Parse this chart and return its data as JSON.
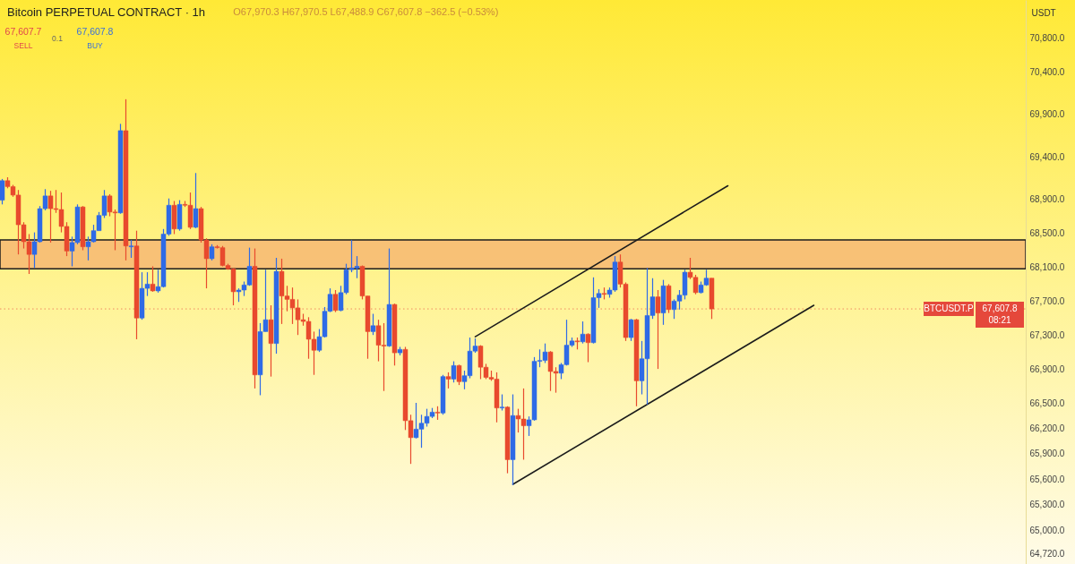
{
  "chart_data": {
    "type": "candlestick",
    "title": "Bitcoin PERPETUAL CONTRACT · 1h",
    "ylabel": "USDT",
    "categories": [
      null,
      null,
      null,
      null,
      null,
      null,
      null,
      null,
      null,
      null,
      null,
      null,
      null,
      null,
      null,
      null,
      null,
      null,
      null,
      null,
      null,
      null,
      null,
      null,
      null,
      null,
      null,
      null,
      null,
      null,
      null,
      null,
      null,
      null,
      null,
      null,
      null,
      null,
      null,
      null,
      null,
      null,
      null,
      null,
      null,
      null,
      null,
      null,
      null,
      null,
      null,
      null,
      null,
      null,
      null,
      null,
      null,
      null,
      null,
      null,
      null,
      null,
      null,
      null,
      null,
      null,
      null,
      null,
      null,
      null,
      null,
      null,
      null,
      null,
      null,
      null,
      null,
      null,
      null,
      null,
      null,
      null,
      null,
      null,
      null,
      null,
      null,
      null,
      null,
      null,
      null,
      null,
      null,
      null,
      null,
      null,
      null,
      null,
      null,
      null,
      null,
      null,
      null,
      null,
      null,
      null,
      null,
      null,
      null,
      null,
      null,
      null,
      null,
      null,
      null,
      null,
      null,
      null,
      null,
      null,
      null,
      null,
      null,
      null,
      null,
      null,
      null,
      null,
      null,
      null,
      null,
      null,
      null,
      null,
      null,
      null,
      null,
      null,
      null,
      null,
      null,
      null,
      null,
      null,
      null,
      null,
      null,
      null,
      null,
      null,
      null,
      null,
      null,
      null,
      null,
      null,
      null,
      null,
      null,
      null,
      null,
      null,
      null,
      null,
      null,
      null,
      null,
      null,
      null,
      null,
      null,
      null,
      null,
      null,
      null,
      null,
      null,
      null,
      null,
      null,
      null,
      null,
      null,
      null,
      null,
      null,
      null,
      null,
      null,
      null,
      null
    ],
    "ohlc": [
      [
        68890,
        69140,
        68840,
        69120
      ],
      [
        69120,
        69160,
        69030,
        69050
      ],
      [
        69050,
        69070,
        68930,
        68950
      ],
      [
        68950,
        69010,
        68250,
        68600
      ],
      [
        68600,
        68630,
        68320,
        68400
      ],
      [
        68400,
        68490,
        68020,
        68250
      ],
      [
        68250,
        68510,
        68090,
        68400
      ],
      [
        68400,
        68820,
        68390,
        68790
      ],
      [
        68790,
        69020,
        68770,
        68940
      ],
      [
        68940,
        69000,
        68390,
        68790
      ],
      [
        68790,
        69010,
        68740,
        68780
      ],
      [
        68780,
        68980,
        68510,
        68580
      ],
      [
        68580,
        68630,
        68230,
        68290
      ],
      [
        68290,
        68460,
        68110,
        68390
      ],
      [
        68390,
        68840,
        68370,
        68810
      ],
      [
        68810,
        68820,
        68300,
        68340
      ],
      [
        68340,
        68460,
        68180,
        68400
      ],
      [
        68400,
        68600,
        68390,
        68530
      ],
      [
        68530,
        68750,
        68530,
        68710
      ],
      [
        68710,
        69010,
        68680,
        68940
      ],
      [
        68940,
        68960,
        68700,
        68750
      ],
      [
        68750,
        68780,
        68300,
        68740
      ],
      [
        68740,
        69790,
        68730,
        69710
      ],
      [
        69710,
        70080,
        68180,
        68350
      ],
      [
        68340,
        68420,
        68210,
        68350
      ],
      [
        68350,
        68530,
        67250,
        67500
      ],
      [
        67500,
        68040,
        67480,
        67850
      ],
      [
        67850,
        68040,
        67760,
        67900
      ],
      [
        67900,
        68110,
        67810,
        67820
      ],
      [
        67820,
        68070,
        67800,
        67870
      ],
      [
        67870,
        68550,
        67860,
        68490
      ],
      [
        68490,
        68910,
        68470,
        68830
      ],
      [
        68830,
        68880,
        68490,
        68550
      ],
      [
        68550,
        68890,
        68530,
        68840
      ],
      [
        68840,
        68880,
        68810,
        68830
      ],
      [
        68830,
        68980,
        68550,
        68570
      ],
      [
        68570,
        69210,
        68560,
        68790
      ],
      [
        68790,
        68810,
        68390,
        68420
      ],
      [
        68420,
        68440,
        67850,
        68200
      ],
      [
        68200,
        68370,
        68180,
        68340
      ],
      [
        68340,
        68360,
        68320,
        68330
      ],
      [
        68330,
        68350,
        68110,
        68120
      ],
      [
        68120,
        68140,
        68070,
        68080
      ],
      [
        68080,
        68090,
        67650,
        67810
      ],
      [
        67810,
        67850,
        67690,
        67830
      ],
      [
        67830,
        67930,
        67760,
        67890
      ],
      [
        67890,
        68330,
        67880,
        68110
      ],
      [
        68110,
        68320,
        66670,
        66830
      ],
      [
        66830,
        67440,
        66590,
        67340
      ],
      [
        67340,
        68070,
        67340,
        67480
      ],
      [
        67480,
        67650,
        66810,
        67200
      ],
      [
        67200,
        68210,
        67080,
        68050
      ],
      [
        68050,
        68200,
        67430,
        67760
      ],
      [
        67760,
        67880,
        67580,
        67720
      ],
      [
        67720,
        67860,
        67430,
        67620
      ],
      [
        67620,
        67720,
        67300,
        67480
      ],
      [
        67480,
        67550,
        67410,
        67460
      ],
      [
        67460,
        67510,
        67020,
        67250
      ],
      [
        67250,
        67340,
        66830,
        67120
      ],
      [
        67120,
        67370,
        67100,
        67280
      ],
      [
        67280,
        67630,
        67270,
        67580
      ],
      [
        67580,
        67850,
        67570,
        67780
      ],
      [
        67780,
        67830,
        67570,
        67590
      ],
      [
        67590,
        67880,
        67580,
        67800
      ],
      [
        67800,
        68140,
        67780,
        68070
      ],
      [
        68070,
        68420,
        68040,
        68090
      ],
      [
        68090,
        68230,
        67970,
        68110
      ],
      [
        68110,
        68120,
        67720,
        67760
      ],
      [
        67760,
        67760,
        67020,
        67340
      ],
      [
        67340,
        67550,
        67300,
        67410
      ],
      [
        67410,
        67480,
        66990,
        67180
      ],
      [
        67180,
        67440,
        66640,
        67170
      ],
      [
        67170,
        68320,
        67160,
        67660
      ],
      [
        67660,
        67670,
        66940,
        67090
      ],
      [
        67090,
        67160,
        67060,
        67130
      ],
      [
        67130,
        67160,
        66180,
        66290
      ],
      [
        66290,
        66360,
        65780,
        66090
      ],
      [
        66090,
        66500,
        66080,
        66190
      ],
      [
        66190,
        66360,
        65970,
        66260
      ],
      [
        66260,
        66430,
        66220,
        66340
      ],
      [
        66340,
        66440,
        66320,
        66390
      ],
      [
        66390,
        66460,
        66300,
        66380
      ],
      [
        66380,
        66830,
        66360,
        66810
      ],
      [
        66810,
        66860,
        66670,
        66780
      ],
      [
        66780,
        66990,
        66740,
        66940
      ],
      [
        66940,
        66950,
        66710,
        66750
      ],
      [
        66750,
        66880,
        66660,
        66820
      ],
      [
        66820,
        67270,
        66790,
        67110
      ],
      [
        67110,
        67260,
        67090,
        67170
      ],
      [
        67170,
        67180,
        66780,
        66920
      ],
      [
        66920,
        66960,
        66780,
        66800
      ],
      [
        66800,
        66880,
        66760,
        66780
      ],
      [
        66780,
        66860,
        66270,
        66440
      ],
      [
        66440,
        66600,
        66410,
        66450
      ],
      [
        66450,
        66460,
        65670,
        65830
      ],
      [
        65830,
        66600,
        65530,
        66350
      ],
      [
        66350,
        66430,
        66150,
        66310
      ],
      [
        66310,
        66670,
        65830,
        66230
      ],
      [
        66230,
        66340,
        66110,
        66300
      ],
      [
        66300,
        67040,
        66290,
        66990
      ],
      [
        66990,
        67130,
        66920,
        67000
      ],
      [
        67000,
        67200,
        66970,
        67100
      ],
      [
        67100,
        67110,
        66640,
        66870
      ],
      [
        66870,
        66920,
        66620,
        66850
      ],
      [
        66850,
        66970,
        66780,
        66950
      ],
      [
        66950,
        67480,
        66940,
        67180
      ],
      [
        67180,
        67270,
        67160,
        67230
      ],
      [
        67230,
        67270,
        67130,
        67220
      ],
      [
        67220,
        67460,
        67200,
        67310
      ],
      [
        67310,
        67320,
        66980,
        67210
      ],
      [
        67210,
        67980,
        67200,
        67740
      ],
      [
        67740,
        67840,
        67620,
        67790
      ],
      [
        67790,
        67860,
        67720,
        67780
      ],
      [
        67780,
        67860,
        67740,
        67830
      ],
      [
        67830,
        68230,
        67810,
        68160
      ],
      [
        68160,
        68250,
        67860,
        67900
      ],
      [
        67900,
        67920,
        67230,
        67270
      ],
      [
        67270,
        67490,
        67230,
        67480
      ],
      [
        67480,
        67490,
        66460,
        66760
      ],
      [
        66760,
        67230,
        66600,
        67020
      ],
      [
        67020,
        68090,
        66480,
        67530
      ],
      [
        67530,
        67970,
        67490,
        67750
      ],
      [
        67750,
        67830,
        66900,
        67560
      ],
      [
        67560,
        67950,
        67420,
        67880
      ],
      [
        67880,
        67900,
        67560,
        67600
      ],
      [
        67600,
        67720,
        67490,
        67700
      ],
      [
        67700,
        67830,
        67600,
        67770
      ],
      [
        67770,
        68070,
        67720,
        68040
      ],
      [
        68040,
        68210,
        67960,
        67980
      ],
      [
        67980,
        68010,
        67780,
        67800
      ],
      [
        67800,
        67930,
        67790,
        67890
      ],
      [
        67890,
        68070,
        67880,
        67970
      ],
      [
        67970.3,
        67970.5,
        67488.9,
        67607.8
      ],
      null,
      null,
      null,
      null,
      null,
      null,
      null,
      null,
      null,
      null,
      null,
      null,
      null,
      null,
      null,
      null,
      null,
      null,
      null,
      null,
      null,
      null,
      null,
      null,
      null,
      null,
      null,
      null,
      null,
      null,
      null,
      null,
      null,
      null,
      null,
      null,
      null,
      null,
      null,
      null,
      null,
      null,
      null,
      null,
      null,
      null,
      null,
      null,
      null,
      null,
      null,
      null,
      null,
      null,
      null,
      null,
      null,
      null
    ],
    "colors": [
      "#2f6be6",
      "#e84a2e",
      "#e84a2e",
      "#e84a2e",
      "#e84a2e",
      "#e84a2e",
      "#2f6be6",
      "#2f6be6",
      "#2f6be6",
      "#e84a2e",
      "#e84a2e",
      "#e84a2e",
      "#e84a2e",
      "#2f6be6",
      "#2f6be6",
      "#e84a2e",
      "#2f6be6",
      "#2f6be6",
      "#2f6be6",
      "#2f6be6",
      "#e84a2e",
      "#e84a2e",
      "#2f6be6",
      "#e84a2e",
      "#2f6be6",
      "#e84a2e",
      "#2f6be6",
      "#2f6be6",
      "#e84a2e",
      "#2f6be6",
      "#2f6be6",
      "#2f6be6",
      "#e84a2e",
      "#2f6be6",
      "#e84a2e",
      "#e84a2e",
      "#2f6be6",
      "#e84a2e",
      "#e84a2e",
      "#2f6be6",
      "#e84a2e",
      "#e84a2e",
      "#e84a2e",
      "#e84a2e",
      "#2f6be6",
      "#2f6be6",
      "#2f6be6",
      "#e84a2e",
      "#2f6be6",
      "#2f6be6",
      "#e84a2e",
      "#2f6be6",
      "#e84a2e",
      "#e84a2e",
      "#e84a2e",
      "#e84a2e",
      "#e84a2e",
      "#e84a2e",
      "#e84a2e",
      "#2f6be6",
      "#2f6be6",
      "#2f6be6",
      "#e84a2e",
      "#2f6be6",
      "#2f6be6",
      "#2f6be6",
      "#2f6be6",
      "#e84a2e",
      "#e84a2e",
      "#2f6be6",
      "#e84a2e",
      "#e84a2e",
      "#2f6be6",
      "#e84a2e",
      "#2f6be6",
      "#e84a2e",
      "#e84a2e",
      "#2f6be6",
      "#2f6be6",
      "#2f6be6",
      "#2f6be6",
      "#e84a2e",
      "#2f6be6",
      "#e84a2e",
      "#2f6be6",
      "#e84a2e",
      "#2f6be6",
      "#2f6be6",
      "#2f6be6",
      "#e84a2e",
      "#e84a2e",
      "#e84a2e",
      "#e84a2e",
      "#2f6be6",
      "#e84a2e",
      "#2f6be6",
      "#e84a2e",
      "#e84a2e",
      "#2f6be6",
      "#2f6be6",
      "#2f6be6",
      "#2f6be6",
      "#e84a2e",
      "#e84a2e",
      "#2f6be6",
      "#2f6be6",
      "#2f6be6",
      "#e84a2e",
      "#2f6be6",
      "#e84a2e",
      "#2f6be6",
      "#2f6be6",
      "#e84a2e",
      "#2f6be6",
      "#2f6be6",
      "#e84a2e",
      "#e84a2e",
      "#2f6be6",
      "#e84a2e",
      "#2f6be6",
      "#2f6be6",
      "#2f6be6",
      "#e84a2e",
      "#2f6be6",
      "#e84a2e",
      "#2f6be6",
      "#2f6be6",
      "#2f6be6",
      "#e84a2e",
      "#e84a2e",
      "#2f6be6",
      "#2f6be6",
      "#e84a2e",
      null,
      null,
      null,
      null,
      null,
      null,
      null,
      null,
      null,
      null,
      null,
      null,
      null,
      null,
      null,
      null,
      null,
      null,
      null,
      null,
      null,
      null,
      null,
      null,
      null,
      null,
      null,
      null,
      null,
      null,
      null,
      null,
      null,
      null,
      null,
      null,
      null,
      null,
      null,
      null,
      null,
      null,
      null,
      null,
      null,
      null,
      null,
      null,
      null,
      null,
      null,
      null,
      null,
      null,
      null,
      null,
      null,
      null
    ],
    "series": [
      {
        "type": "line",
        "color": "#1c1c1c",
        "values": [
          null,
          null,
          null,
          null,
          null,
          null,
          null,
          null,
          null,
          null,
          null,
          null,
          null,
          null,
          null,
          null,
          null,
          null,
          null,
          null,
          null,
          null,
          null,
          null,
          null,
          null,
          null,
          null,
          null,
          null,
          null,
          null,
          null,
          null,
          null,
          null,
          null,
          null,
          null,
          null,
          null,
          null,
          null,
          null,
          null,
          null,
          null,
          null,
          null,
          null,
          null,
          null,
          null,
          null,
          null,
          null,
          null,
          null,
          null,
          null,
          null,
          null,
          null,
          null,
          null,
          null,
          null,
          null,
          null,
          null,
          null,
          null,
          null,
          null,
          null,
          null,
          null,
          null,
          null,
          null,
          null,
          null,
          null,
          null,
          null,
          null,
          null,
          null,
          67280,
          null,
          null,
          null,
          null,
          null,
          null,
          null,
          null,
          null,
          null,
          null,
          null,
          null,
          null,
          null,
          null,
          null,
          null,
          null,
          null,
          null,
          null,
          null,
          null,
          null,
          null,
          null,
          null,
          null,
          null,
          null,
          null,
          null,
          null,
          null,
          null,
          null,
          null,
          null,
          null,
          null,
          null,
          null,
          null,
          null,
          null,
          69060,
          null,
          null,
          null,
          null,
          null,
          null,
          null,
          null,
          null,
          null,
          null,
          null,
          null,
          null,
          null,
          null,
          null,
          null,
          null,
          null,
          null,
          null,
          null,
          null,
          null,
          null,
          null,
          null,
          null,
          null,
          null,
          null,
          null,
          null,
          null,
          null,
          null,
          null,
          null,
          null,
          null,
          null,
          null,
          null,
          null,
          null,
          null,
          null,
          null,
          null,
          null,
          null,
          null,
          null,
          null
        ]
      },
      {
        "type": "line",
        "color": "#1c1c1c",
        "values": [
          null,
          null,
          null,
          null,
          null,
          null,
          null,
          null,
          null,
          null,
          null,
          null,
          null,
          null,
          null,
          null,
          null,
          null,
          null,
          null,
          null,
          null,
          null,
          null,
          null,
          null,
          null,
          null,
          null,
          null,
          null,
          null,
          null,
          null,
          null,
          null,
          null,
          null,
          null,
          null,
          null,
          null,
          null,
          null,
          null,
          null,
          null,
          null,
          null,
          null,
          null,
          null,
          null,
          null,
          null,
          null,
          null,
          null,
          null,
          null,
          null,
          null,
          null,
          null,
          null,
          null,
          null,
          null,
          null,
          null,
          null,
          null,
          null,
          null,
          null,
          null,
          null,
          null,
          null,
          null,
          null,
          null,
          null,
          null,
          null,
          null,
          null,
          null,
          null,
          null,
          null,
          null,
          null,
          null,
          null,
          65540,
          null,
          null,
          null,
          null,
          null,
          null,
          null,
          null,
          null,
          null,
          null,
          null,
          null,
          null,
          null,
          null,
          null,
          null,
          null,
          null,
          null,
          null,
          null,
          null,
          null,
          null,
          null,
          null,
          null,
          null,
          null,
          null,
          null,
          null,
          null,
          null,
          null,
          null,
          null,
          null,
          null,
          null,
          null,
          null,
          null,
          null,
          null,
          null,
          null,
          null,
          null,
          null,
          null,
          null,
          null,
          67650,
          null,
          null,
          null,
          null,
          null,
          null,
          null,
          null,
          null,
          null,
          null,
          null,
          null,
          null,
          null,
          null,
          null,
          null,
          null,
          null,
          null,
          null,
          null,
          null,
          null,
          null,
          null,
          null,
          null,
          null,
          null,
          null,
          null,
          null,
          null,
          null,
          null,
          null,
          null
        ]
      }
    ],
    "ylim": [
      64600,
      71250
    ],
    "yticks": [
      {
        "value": 64720,
        "label": "64,720.0"
      },
      {
        "value": 65000,
        "label": "65,000.0"
      },
      {
        "value": 65300,
        "label": "65,300.0"
      },
      {
        "value": 65600,
        "label": "65,600.0"
      },
      {
        "value": 65900,
        "label": "65,900.0"
      },
      {
        "value": 66200,
        "label": "66,200.0"
      },
      {
        "value": 66500,
        "label": "66,500.0"
      },
      {
        "value": 66900,
        "label": "66,900.0"
      },
      {
        "value": 67300,
        "label": "67,300.0"
      },
      {
        "value": 67700,
        "label": "67,700.0"
      },
      {
        "value": 68100,
        "label": "68,100.0"
      },
      {
        "value": 68500,
        "label": "68,500.0"
      },
      {
        "value": 68900,
        "label": "68,900.0"
      },
      {
        "value": 69400,
        "label": "69,400.0"
      },
      {
        "value": 69900,
        "label": "69,900.0"
      },
      {
        "value": 70400,
        "label": "70,400.0"
      },
      {
        "value": 70800,
        "label": "70,800.0"
      }
    ],
    "tick_labels": "y",
    "bands": [
      {
        "axis": "y",
        "from": 68080,
        "to": 68420,
        "color": "#f7bb74"
      }
    ],
    "ref_lines": [
      {
        "axis": "y",
        "value": 67607.8,
        "label": "BTCUSDT.P",
        "color": "#e5483b",
        "line_style": "dotted"
      }
    ],
    "annotations": [
      "O67,970.3 H67,970.5 L67,488.9 C67,607.8 −362.5 (−0.53%)",
      "67,607.7",
      "SELL",
      "0.1",
      "67,607.8",
      "BUY",
      "08:21"
    ]
  }
}
